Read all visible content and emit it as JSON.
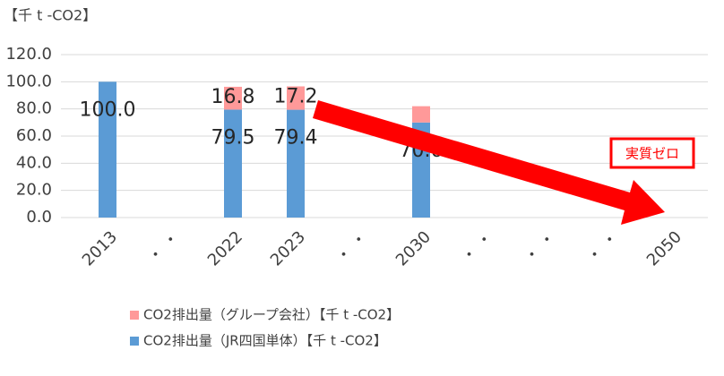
{
  "chart_data": {
    "type": "stacked_bar",
    "unit_label": "【千 t -CO2】",
    "categories": [
      "2013",
      "・ ・",
      "2022",
      "2023",
      "・ ・",
      "2030",
      "・ ・",
      "・ ・",
      "・ ・",
      "2050"
    ],
    "series": [
      {
        "name": "CO2排出量（JR四国単体）【千 t -CO2】",
        "color": "#5b9bd5",
        "values": [
          100,
          null,
          79.5,
          79.4,
          null,
          70,
          null,
          null,
          null,
          null
        ],
        "value_labels": [
          "100.0",
          null,
          "79.5",
          "79.4",
          null,
          "70.0",
          null,
          null,
          null,
          null
        ]
      },
      {
        "name": "CO2排出量（グループ会社）【千 t -CO2】",
        "color": "#ff9999",
        "values": [
          null,
          null,
          16.8,
          17.2,
          null,
          12,
          null,
          null,
          null,
          null
        ],
        "value_labels": [
          null,
          null,
          "16.8",
          "17.2",
          null,
          null,
          null,
          null,
          null,
          null
        ]
      }
    ],
    "ylim": [
      0,
      120
    ],
    "yticks": [
      {
        "value": 0,
        "label": "0.0"
      },
      {
        "value": 20,
        "label": "20.0"
      },
      {
        "value": 40,
        "label": "40.0"
      },
      {
        "value": 60,
        "label": "60.0"
      },
      {
        "value": 80,
        "label": "80.0"
      },
      {
        "value": 100,
        "label": "100.0"
      },
      {
        "value": 120,
        "label": "120.0"
      }
    ],
    "grid": true,
    "annotation": "実質ゼロ"
  }
}
